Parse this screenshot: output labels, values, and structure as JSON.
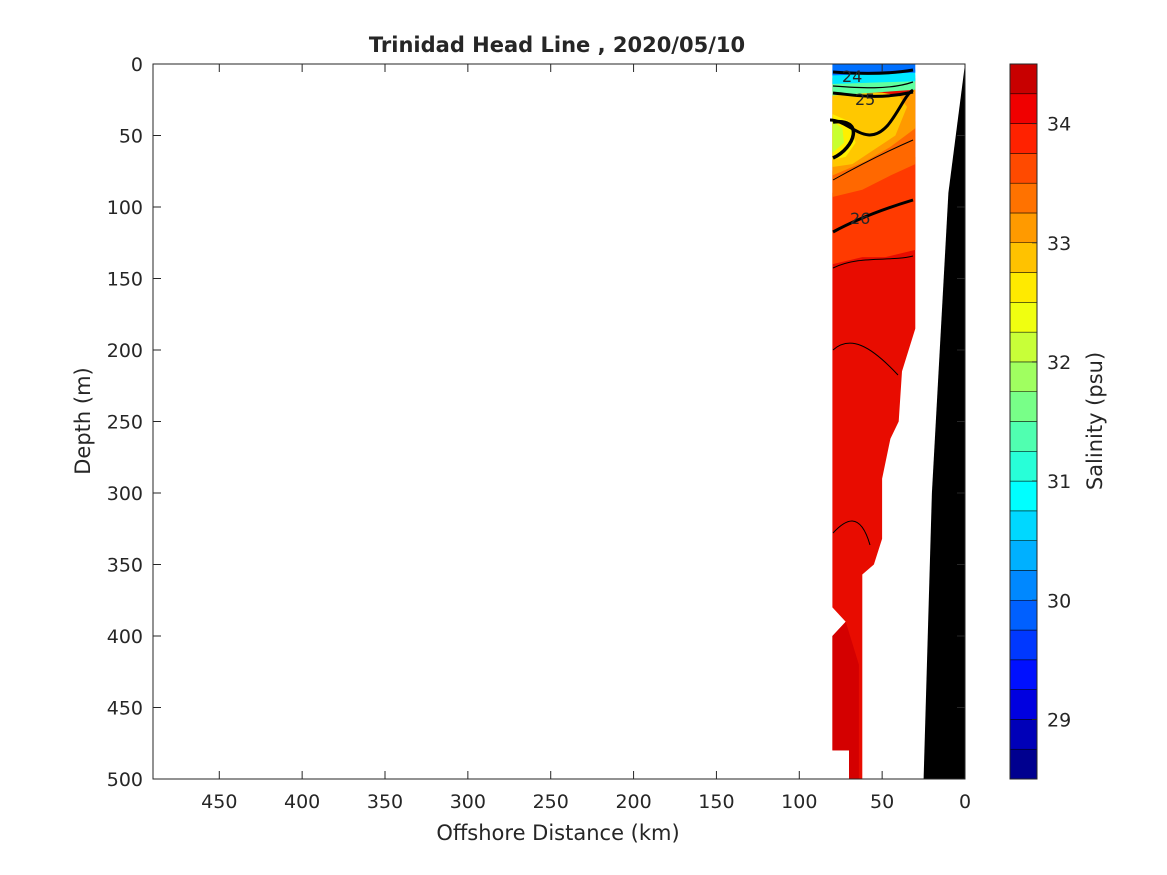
{
  "chart_data": {
    "type": "contour",
    "title": "Trinidad Head Line , 2020/05/10",
    "xlabel": "Offshore Distance (km)",
    "ylabel": "Depth (m)",
    "xlim": [
      490,
      0
    ],
    "ylim": [
      0,
      500
    ],
    "x_reversed": true,
    "y_reversed": true,
    "xticks": [
      450,
      400,
      350,
      300,
      250,
      200,
      150,
      100,
      50,
      0
    ],
    "yticks": [
      0,
      50,
      100,
      150,
      200,
      250,
      300,
      350,
      400,
      450,
      500
    ],
    "colorbar": {
      "label": "Salinity (psu)",
      "range": [
        28.5,
        34.5
      ],
      "ticks": [
        29,
        30,
        31,
        32,
        33,
        34
      ],
      "levels": [
        28.5,
        28.75,
        29,
        29.25,
        29.5,
        29.75,
        30,
        30.25,
        30.5,
        30.75,
        31,
        31.25,
        31.5,
        31.75,
        32,
        32.25,
        32.5,
        32.75,
        33,
        33.25,
        33.5,
        33.75,
        34,
        34.25,
        34.5
      ],
      "colors": [
        "#00008f",
        "#0000b8",
        "#0000e0",
        "#0010ff",
        "#0038ff",
        "#0060ff",
        "#0088ff",
        "#00b0ff",
        "#00d8ff",
        "#00ffff",
        "#28ffd8",
        "#50ffb0",
        "#78ff88",
        "#a0ff60",
        "#c8ff38",
        "#f0ff10",
        "#ffea00",
        "#ffc200",
        "#ff9a00",
        "#ff7200",
        "#ff4a00",
        "#ff2200",
        "#f00000",
        "#c80000"
      ]
    },
    "density_contour_labels": [
      "24",
      "25",
      "26"
    ],
    "regions": [
      {
        "salinity": 33.9,
        "color": "#e80c00",
        "polygon": [
          [
            80,
            10
          ],
          [
            30,
            10
          ],
          [
            30,
            185
          ],
          [
            38,
            215
          ],
          [
            40,
            250
          ],
          [
            45,
            262
          ],
          [
            50,
            290
          ],
          [
            50,
            332
          ],
          [
            55,
            350
          ],
          [
            62,
            357
          ],
          [
            62,
            500
          ],
          [
            70,
            500
          ],
          [
            70,
            480
          ],
          [
            80,
            480
          ],
          [
            80,
            400
          ],
          [
            72,
            390
          ],
          [
            80,
            380
          ],
          [
            80,
            140
          ]
        ]
      },
      {
        "salinity": 34.1,
        "color": "#d40000",
        "polygon": [
          [
            80,
            400
          ],
          [
            72,
            390
          ],
          [
            64,
            420
          ],
          [
            64,
            500
          ],
          [
            70,
            500
          ],
          [
            70,
            480
          ],
          [
            80,
            480
          ]
        ]
      },
      {
        "salinity": 33.6,
        "color": "#ff3a00",
        "polygon": [
          [
            80,
            90
          ],
          [
            62,
            85
          ],
          [
            45,
            75
          ],
          [
            30,
            65
          ],
          [
            30,
            130
          ],
          [
            48,
            135
          ],
          [
            62,
            135
          ],
          [
            80,
            140
          ]
        ]
      },
      {
        "salinity": 33.3,
        "color": "#ff6800",
        "polygon": [
          [
            80,
            75
          ],
          [
            60,
            65
          ],
          [
            45,
            55
          ],
          [
            30,
            40
          ],
          [
            30,
            70
          ],
          [
            45,
            78
          ],
          [
            62,
            88
          ],
          [
            80,
            93
          ]
        ]
      },
      {
        "salinity": 33.0,
        "color": "#ff9a00",
        "polygon": [
          [
            80,
            25
          ],
          [
            45,
            22
          ],
          [
            30,
            18
          ],
          [
            30,
            45
          ],
          [
            45,
            58
          ],
          [
            60,
            68
          ],
          [
            80,
            78
          ]
        ]
      },
      {
        "salinity": 32.6,
        "color": "#ffc800",
        "polygon": [
          [
            80,
            20
          ],
          [
            50,
            20
          ],
          [
            40,
            22
          ],
          [
            35,
            30
          ],
          [
            42,
            50
          ],
          [
            55,
            60
          ],
          [
            68,
            70
          ],
          [
            80,
            72
          ]
        ]
      },
      {
        "salinity": 32.3,
        "color": "#fff000",
        "polygon": [
          [
            80,
            35
          ],
          [
            70,
            40
          ],
          [
            66,
            55
          ],
          [
            72,
            65
          ],
          [
            80,
            67
          ]
        ]
      },
      {
        "salinity": 32.0,
        "color": "#c8ff30",
        "polygon": [
          [
            80,
            40
          ],
          [
            74,
            45
          ],
          [
            73,
            55
          ],
          [
            80,
            62
          ]
        ]
      },
      {
        "salinity": 31.5,
        "color": "#60ffa0",
        "polygon": [
          [
            80,
            8
          ],
          [
            30,
            8
          ],
          [
            30,
            18
          ],
          [
            80,
            22
          ]
        ]
      },
      {
        "salinity": 30.8,
        "color": "#00e8ff",
        "polygon": [
          [
            80,
            4
          ],
          [
            30,
            4
          ],
          [
            30,
            12
          ],
          [
            80,
            14
          ]
        ]
      },
      {
        "salinity": 30.0,
        "color": "#0070ff",
        "polygon": [
          [
            80,
            0
          ],
          [
            30,
            0
          ],
          [
            30,
            6
          ],
          [
            80,
            8
          ]
        ]
      }
    ],
    "bathymetry": {
      "color": "#000000",
      "polygon": [
        [
          0,
          0
        ],
        [
          10,
          90
        ],
        [
          20,
          300
        ],
        [
          25,
          500
        ],
        [
          0,
          500
        ]
      ]
    }
  }
}
